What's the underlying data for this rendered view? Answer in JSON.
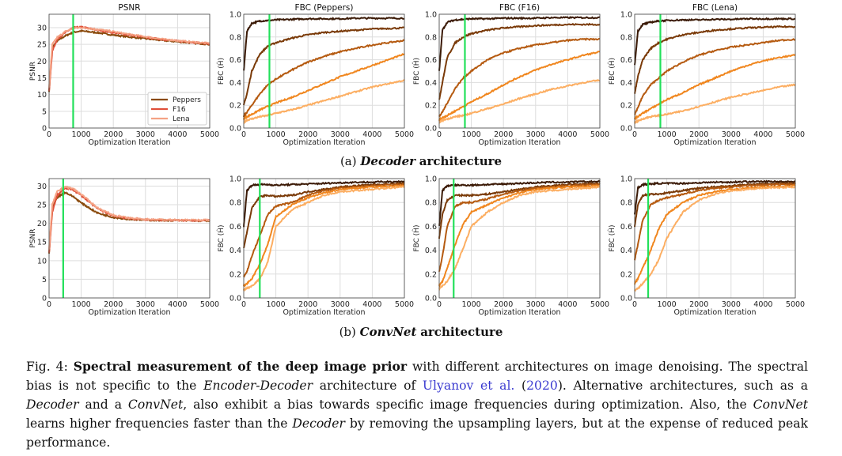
{
  "figure": {
    "subcaption_a": {
      "label": "(a)",
      "name": "Decoder",
      "rest": "architecture"
    },
    "subcaption_b": {
      "label": "(b)",
      "name": "ConvNet",
      "rest": "architecture"
    },
    "caption": {
      "fig_label": "Fig. 4:",
      "bold": "Spectral measurement of the deep image prior",
      "t1": " with different architectures on image denoising. The spectral bias is not specific to the ",
      "i1": "Encoder-Decoder",
      "t2": " architecture of ",
      "link": "Ulyanov et al.",
      "t3": " (",
      "year": "2020",
      "t4": "). Alternative architectures, such as a ",
      "i2": "Decoder",
      "t5": " and a ",
      "i3": "ConvNet",
      "t6": ", also exhibit a bias towards specific image frequencies during optimization. Also, the ",
      "i4": "ConvNet",
      "t7": " learns higher frequencies faster than the ",
      "i5": "Decoder",
      "t8": " by removing the upsampling layers, but at the expense of reduced peak performance."
    }
  },
  "colors": {
    "marker_line": "#22e05a",
    "psnr": [
      "#8a4a0c",
      "#e0503a",
      "#f4a284"
    ],
    "fbc": [
      "#3b1a06",
      "#7a3a08",
      "#b55a10",
      "#f0861e",
      "#fcae62"
    ]
  },
  "chart_data": [
    {
      "type": "line",
      "row": "a",
      "title": "PSNR",
      "xlabel": "Optimization Iteration",
      "ylabel": "PSNR",
      "xlim": [
        0,
        5000
      ],
      "ylim": [
        0,
        34
      ],
      "yticks": [
        0,
        5,
        10,
        15,
        20,
        25,
        30
      ],
      "xticks": [
        0,
        1000,
        2000,
        3000,
        4000,
        5000
      ],
      "grid": true,
      "legend": "bottom-right",
      "marker_x": 750,
      "x": [
        0,
        100,
        250,
        500,
        750,
        1000,
        1500,
        2000,
        2500,
        3000,
        3500,
        4000,
        4500,
        5000
      ],
      "series": [
        {
          "name": "Peppers",
          "values": [
            11,
            24,
            26,
            27.5,
            28.6,
            29,
            28.5,
            27.8,
            27.2,
            26.7,
            26.2,
            25.8,
            25.4,
            25
          ]
        },
        {
          "name": "F16",
          "values": [
            11,
            23,
            26.5,
            28.5,
            30,
            30.2,
            29.3,
            28.5,
            27.8,
            27.1,
            26.5,
            26,
            25.6,
            25.2
          ]
        },
        {
          "name": "Lena",
          "values": [
            12,
            25,
            27,
            28.8,
            29.8,
            30,
            29.5,
            28.8,
            28,
            27.3,
            26.6,
            26.1,
            25.7,
            25.3
          ]
        }
      ]
    },
    {
      "type": "line",
      "row": "a",
      "title": "FBC (Peppers)",
      "xlabel": "Optimization Iteration",
      "ylabel": "FBC (Ĥ)",
      "xlim": [
        0,
        5000
      ],
      "ylim": [
        0,
        1
      ],
      "yticks": [
        0,
        0.2,
        0.4,
        0.6,
        0.8,
        1.0
      ],
      "xticks": [
        0,
        1000,
        2000,
        3000,
        4000,
        5000
      ],
      "grid": true,
      "marker_x": 800,
      "x": [
        0,
        100,
        250,
        500,
        750,
        1000,
        1500,
        2000,
        2500,
        3000,
        3500,
        4000,
        4500,
        5000
      ],
      "series": [
        {
          "values": [
            0.5,
            0.85,
            0.92,
            0.94,
            0.945,
            0.95,
            0.955,
            0.96,
            0.96,
            0.96,
            0.965,
            0.965,
            0.965,
            0.965
          ]
        },
        {
          "values": [
            0.2,
            0.3,
            0.5,
            0.65,
            0.72,
            0.75,
            0.79,
            0.82,
            0.84,
            0.85,
            0.86,
            0.87,
            0.875,
            0.88
          ]
        },
        {
          "values": [
            0.1,
            0.14,
            0.2,
            0.3,
            0.38,
            0.43,
            0.51,
            0.58,
            0.63,
            0.67,
            0.7,
            0.73,
            0.75,
            0.77
          ]
        },
        {
          "values": [
            0.08,
            0.1,
            0.12,
            0.16,
            0.19,
            0.22,
            0.27,
            0.33,
            0.39,
            0.45,
            0.5,
            0.55,
            0.6,
            0.65
          ]
        },
        {
          "values": [
            0.05,
            0.07,
            0.08,
            0.1,
            0.11,
            0.13,
            0.16,
            0.2,
            0.24,
            0.28,
            0.32,
            0.36,
            0.39,
            0.42
          ]
        }
      ]
    },
    {
      "type": "line",
      "row": "a",
      "title": "FBC (F16)",
      "xlabel": "Optimization Iteration",
      "ylabel": "FBC (Ĥ)",
      "xlim": [
        0,
        5000
      ],
      "ylim": [
        0,
        1
      ],
      "yticks": [
        0,
        0.2,
        0.4,
        0.6,
        0.8,
        1.0
      ],
      "xticks": [
        0,
        1000,
        2000,
        3000,
        4000,
        5000
      ],
      "grid": true,
      "marker_x": 800,
      "x": [
        0,
        100,
        250,
        500,
        750,
        1000,
        1500,
        2000,
        2500,
        3000,
        3500,
        4000,
        4500,
        5000
      ],
      "series": [
        {
          "values": [
            0.5,
            0.86,
            0.93,
            0.95,
            0.955,
            0.96,
            0.96,
            0.965,
            0.965,
            0.965,
            0.97,
            0.97,
            0.97,
            0.97
          ]
        },
        {
          "values": [
            0.25,
            0.4,
            0.62,
            0.75,
            0.8,
            0.83,
            0.86,
            0.88,
            0.89,
            0.9,
            0.905,
            0.91,
            0.91,
            0.91
          ]
        },
        {
          "values": [
            0.1,
            0.14,
            0.22,
            0.35,
            0.44,
            0.5,
            0.6,
            0.66,
            0.7,
            0.73,
            0.75,
            0.77,
            0.78,
            0.78
          ]
        },
        {
          "values": [
            0.07,
            0.09,
            0.11,
            0.15,
            0.19,
            0.23,
            0.3,
            0.38,
            0.45,
            0.51,
            0.56,
            0.6,
            0.64,
            0.67
          ]
        },
        {
          "values": [
            0.05,
            0.07,
            0.08,
            0.1,
            0.11,
            0.13,
            0.17,
            0.21,
            0.26,
            0.3,
            0.34,
            0.37,
            0.4,
            0.42
          ]
        }
      ]
    },
    {
      "type": "line",
      "row": "a",
      "title": "FBC (Lena)",
      "xlabel": "Optimization Iteration",
      "ylabel": "FBC (Ĥ)",
      "xlim": [
        0,
        5000
      ],
      "ylim": [
        0,
        1
      ],
      "yticks": [
        0,
        0.2,
        0.4,
        0.6,
        0.8,
        1.0
      ],
      "xticks": [
        0,
        1000,
        2000,
        3000,
        4000,
        5000
      ],
      "grid": true,
      "marker_x": 800,
      "x": [
        0,
        100,
        250,
        500,
        750,
        1000,
        1500,
        2000,
        2500,
        3000,
        3500,
        4000,
        4500,
        5000
      ],
      "series": [
        {
          "values": [
            0.55,
            0.85,
            0.91,
            0.93,
            0.94,
            0.945,
            0.95,
            0.95,
            0.955,
            0.955,
            0.96,
            0.96,
            0.96,
            0.96
          ]
        },
        {
          "values": [
            0.3,
            0.45,
            0.6,
            0.7,
            0.75,
            0.78,
            0.82,
            0.84,
            0.86,
            0.87,
            0.88,
            0.885,
            0.89,
            0.89
          ]
        },
        {
          "values": [
            0.12,
            0.18,
            0.28,
            0.38,
            0.44,
            0.5,
            0.58,
            0.64,
            0.68,
            0.71,
            0.73,
            0.75,
            0.77,
            0.78
          ]
        },
        {
          "values": [
            0.08,
            0.1,
            0.13,
            0.17,
            0.21,
            0.25,
            0.31,
            0.38,
            0.44,
            0.5,
            0.55,
            0.59,
            0.62,
            0.64
          ]
        },
        {
          "values": [
            0.05,
            0.06,
            0.08,
            0.1,
            0.11,
            0.12,
            0.15,
            0.19,
            0.23,
            0.27,
            0.3,
            0.33,
            0.36,
            0.38
          ]
        }
      ]
    },
    {
      "type": "line",
      "row": "b",
      "title": "",
      "xlabel": "Optimization Iteration",
      "ylabel": "PSNR",
      "xlim": [
        0,
        5000
      ],
      "ylim": [
        0,
        32
      ],
      "yticks": [
        0,
        5,
        10,
        15,
        20,
        25,
        30
      ],
      "xticks": [
        0,
        1000,
        2000,
        3000,
        4000,
        5000
      ],
      "grid": true,
      "marker_x": 440,
      "x": [
        0,
        100,
        250,
        500,
        750,
        1000,
        1500,
        2000,
        2500,
        3000,
        3500,
        4000,
        4500,
        5000
      ],
      "series": [
        {
          "name": "Peppers",
          "values": [
            12,
            24,
            27,
            28.3,
            27.2,
            25.5,
            22.8,
            21.6,
            21.1,
            20.9,
            20.8,
            20.8,
            20.7,
            20.7
          ]
        },
        {
          "name": "F16",
          "values": [
            12,
            23,
            27.5,
            29.5,
            29,
            27.5,
            24,
            22,
            21.3,
            21,
            20.9,
            20.8,
            20.8,
            20.8
          ]
        },
        {
          "name": "Lena",
          "values": [
            13,
            25,
            28.5,
            29.8,
            29.3,
            27.8,
            24.2,
            22.2,
            21.4,
            21.1,
            21,
            20.9,
            20.9,
            20.9
          ]
        }
      ]
    },
    {
      "type": "line",
      "row": "b",
      "title": "",
      "xlabel": "Optimization Iteration",
      "ylabel": "FBC (Ĥ)",
      "xlim": [
        0,
        5000
      ],
      "ylim": [
        0,
        1
      ],
      "yticks": [
        0,
        0.2,
        0.4,
        0.6,
        0.8,
        1.0
      ],
      "xticks": [
        0,
        1000,
        2000,
        3000,
        4000,
        5000
      ],
      "grid": true,
      "marker_x": 500,
      "x": [
        0,
        100,
        250,
        500,
        750,
        1000,
        1500,
        2000,
        2500,
        3000,
        3500,
        4000,
        4500,
        5000
      ],
      "series": [
        {
          "values": [
            0.6,
            0.9,
            0.945,
            0.95,
            0.95,
            0.945,
            0.95,
            0.955,
            0.96,
            0.965,
            0.97,
            0.97,
            0.975,
            0.975
          ]
        },
        {
          "values": [
            0.42,
            0.55,
            0.75,
            0.85,
            0.86,
            0.85,
            0.86,
            0.89,
            0.91,
            0.93,
            0.94,
            0.95,
            0.955,
            0.96
          ]
        },
        {
          "values": [
            0.18,
            0.22,
            0.35,
            0.52,
            0.7,
            0.77,
            0.8,
            0.86,
            0.9,
            0.92,
            0.93,
            0.94,
            0.945,
            0.95
          ]
        },
        {
          "values": [
            0.1,
            0.12,
            0.16,
            0.28,
            0.45,
            0.68,
            0.78,
            0.84,
            0.88,
            0.91,
            0.92,
            0.93,
            0.935,
            0.94
          ]
        },
        {
          "values": [
            0.07,
            0.08,
            0.1,
            0.16,
            0.3,
            0.6,
            0.74,
            0.8,
            0.86,
            0.89,
            0.9,
            0.91,
            0.92,
            0.93
          ]
        }
      ]
    },
    {
      "type": "line",
      "row": "b",
      "title": "",
      "xlabel": "Optimization Iteration",
      "ylabel": "FBC (Ĥ)",
      "xlim": [
        0,
        5000
      ],
      "ylim": [
        0,
        1
      ],
      "yticks": [
        0,
        0.2,
        0.4,
        0.6,
        0.8,
        1.0
      ],
      "xticks": [
        0,
        1000,
        2000,
        3000,
        4000,
        5000
      ],
      "grid": true,
      "marker_x": 450,
      "x": [
        0,
        100,
        250,
        500,
        750,
        1000,
        1500,
        2000,
        2500,
        3000,
        3500,
        4000,
        4500,
        5000
      ],
      "series": [
        {
          "values": [
            0.6,
            0.9,
            0.94,
            0.945,
            0.945,
            0.945,
            0.95,
            0.955,
            0.96,
            0.965,
            0.97,
            0.97,
            0.975,
            0.975
          ]
        },
        {
          "values": [
            0.5,
            0.7,
            0.82,
            0.86,
            0.86,
            0.86,
            0.87,
            0.89,
            0.91,
            0.93,
            0.94,
            0.95,
            0.955,
            0.96
          ]
        },
        {
          "values": [
            0.22,
            0.35,
            0.6,
            0.77,
            0.8,
            0.8,
            0.83,
            0.87,
            0.9,
            0.92,
            0.93,
            0.94,
            0.945,
            0.95
          ]
        },
        {
          "values": [
            0.1,
            0.14,
            0.25,
            0.45,
            0.62,
            0.72,
            0.78,
            0.84,
            0.88,
            0.91,
            0.92,
            0.93,
            0.935,
            0.94
          ]
        },
        {
          "values": [
            0.08,
            0.1,
            0.14,
            0.25,
            0.42,
            0.6,
            0.72,
            0.8,
            0.86,
            0.89,
            0.9,
            0.91,
            0.92,
            0.93
          ]
        }
      ]
    },
    {
      "type": "line",
      "row": "b",
      "title": "",
      "xlabel": "Optimization Iteration",
      "ylabel": "FBC (Ĥ)",
      "xlim": [
        0,
        5000
      ],
      "ylim": [
        0,
        1
      ],
      "yticks": [
        0,
        0.2,
        0.4,
        0.6,
        0.8,
        1.0
      ],
      "xticks": [
        0,
        1000,
        2000,
        3000,
        4000,
        5000
      ],
      "grid": true,
      "marker_x": 420,
      "x": [
        0,
        100,
        250,
        500,
        750,
        1000,
        1500,
        2000,
        2500,
        3000,
        3500,
        4000,
        4500,
        5000
      ],
      "series": [
        {
          "values": [
            0.7,
            0.92,
            0.95,
            0.955,
            0.96,
            0.96,
            0.96,
            0.965,
            0.97,
            0.97,
            0.975,
            0.975,
            0.975,
            0.975
          ]
        },
        {
          "values": [
            0.6,
            0.78,
            0.86,
            0.87,
            0.87,
            0.88,
            0.9,
            0.92,
            0.93,
            0.94,
            0.95,
            0.955,
            0.96,
            0.96
          ]
        },
        {
          "values": [
            0.32,
            0.45,
            0.65,
            0.78,
            0.82,
            0.84,
            0.87,
            0.9,
            0.92,
            0.93,
            0.94,
            0.945,
            0.95,
            0.95
          ]
        },
        {
          "values": [
            0.12,
            0.16,
            0.25,
            0.4,
            0.58,
            0.7,
            0.8,
            0.86,
            0.89,
            0.91,
            0.92,
            0.93,
            0.935,
            0.94
          ]
        },
        {
          "values": [
            0.06,
            0.08,
            0.12,
            0.2,
            0.32,
            0.5,
            0.72,
            0.82,
            0.87,
            0.9,
            0.91,
            0.92,
            0.925,
            0.93
          ]
        }
      ]
    }
  ]
}
